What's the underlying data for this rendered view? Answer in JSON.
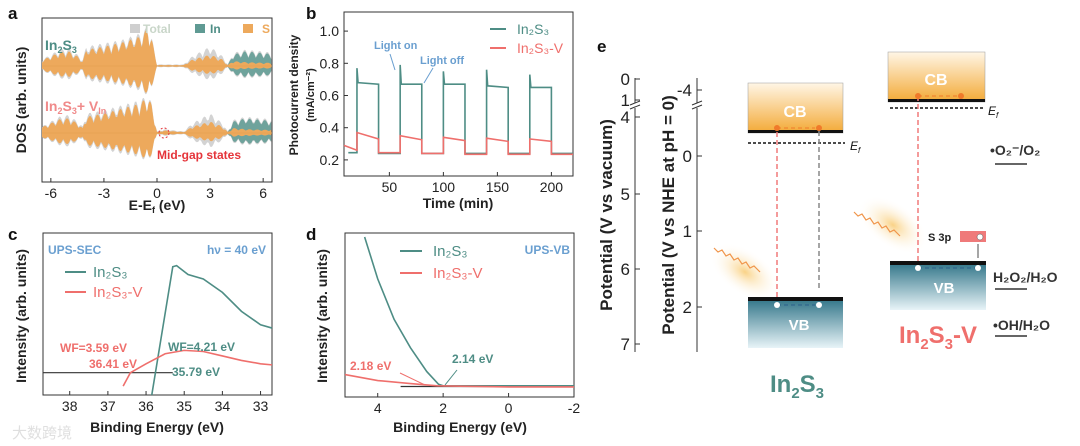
{
  "colors": {
    "teal": "#4e8d85",
    "red": "#ef6f6c",
    "orange": "#eda95c",
    "gray": "#cfcfcf",
    "blue": "#6a9fd0"
  },
  "chart_data": [
    {
      "panel": "a",
      "type": "area",
      "xlabel": "E-E",
      "xlabel_sub": "f",
      "xlabel_unit": " (eV)",
      "ylabel": "DOS (arb. units)",
      "xlim": [
        -6.5,
        6.5
      ],
      "xticks": [
        "-6",
        "-3",
        "0",
        "3",
        "6"
      ],
      "xtick_values": [
        -6,
        -3,
        0,
        3,
        6
      ],
      "legend": [
        "Total",
        "In",
        "S"
      ],
      "series": [
        {
          "name": "In₂S₃",
          "name_parts": [
            "In",
            "2",
            "S",
            "3"
          ],
          "points": [
            [
              -6.5,
              0.2,
              0.18,
              0.05
            ],
            [
              -6,
              0.35,
              0.3,
              0.08
            ],
            [
              -5.5,
              0.5,
              0.42,
              0.1
            ],
            [
              -5,
              0.55,
              0.45,
              0.1
            ],
            [
              -4.5,
              0.35,
              0.3,
              0.08
            ],
            [
              -4.2,
              0.2,
              0.15,
              0.05
            ],
            [
              -4,
              0.6,
              0.5,
              0.1
            ],
            [
              -3,
              0.7,
              0.6,
              0.15
            ],
            [
              -2,
              0.8,
              0.72,
              0.15
            ],
            [
              -1,
              1.0,
              0.9,
              0.2
            ],
            [
              -0.5,
              1.2,
              1.15,
              0.2
            ],
            [
              -0.3,
              0.9,
              0.85,
              0.1
            ],
            [
              0,
              0.05,
              0.03,
              0.01
            ],
            [
              1.5,
              0.05,
              0.03,
              0.02
            ],
            [
              2,
              0.3,
              0.2,
              0.12
            ],
            [
              3,
              0.6,
              0.35,
              0.3
            ],
            [
              3.7,
              0.3,
              0.2,
              0.15
            ],
            [
              4,
              0.05,
              0.03,
              0.03
            ],
            [
              4.3,
              0.4,
              0.15,
              0.35
            ],
            [
              5,
              0.5,
              0.12,
              0.45
            ],
            [
              6,
              0.45,
              0.1,
              0.4
            ],
            [
              6.5,
              0.4,
              0.1,
              0.36
            ]
          ]
        },
        {
          "name": "In₂S₃+ V_In",
          "name_parts": [
            "In",
            "2",
            "S",
            "3",
            "+ V",
            "In"
          ],
          "points": [
            [
              -6.5,
              0.2,
              0.18,
              0.05
            ],
            [
              -6,
              0.35,
              0.3,
              0.08
            ],
            [
              -5.5,
              0.5,
              0.42,
              0.1
            ],
            [
              -5,
              0.55,
              0.45,
              0.1
            ],
            [
              -4.5,
              0.35,
              0.3,
              0.08
            ],
            [
              -4.2,
              0.2,
              0.15,
              0.05
            ],
            [
              -4,
              0.6,
              0.5,
              0.1
            ],
            [
              -3,
              0.7,
              0.6,
              0.15
            ],
            [
              -2,
              0.85,
              0.75,
              0.15
            ],
            [
              -1,
              1.0,
              0.9,
              0.2
            ],
            [
              -0.5,
              1.15,
              1.1,
              0.2
            ],
            [
              -0.3,
              0.9,
              0.85,
              0.1
            ],
            [
              0,
              0.05,
              0.03,
              0.01
            ],
            [
              0.4,
              0.12,
              0.08,
              0.02
            ],
            [
              1.5,
              0.05,
              0.03,
              0.02
            ],
            [
              2,
              0.3,
              0.2,
              0.12
            ],
            [
              3,
              0.6,
              0.35,
              0.3
            ],
            [
              3.7,
              0.3,
              0.2,
              0.15
            ],
            [
              4,
              0.05,
              0.03,
              0.03
            ],
            [
              4.3,
              0.4,
              0.15,
              0.35
            ],
            [
              5,
              0.5,
              0.12,
              0.45
            ],
            [
              6,
              0.45,
              0.1,
              0.4
            ],
            [
              6.5,
              0.4,
              0.1,
              0.36
            ]
          ]
        }
      ],
      "annotation": "Mid-gap states"
    },
    {
      "panel": "b",
      "type": "line",
      "xlabel": "Time (min)",
      "ylabel": [
        "Photocurrent density",
        "(mA/cm⁻²)"
      ],
      "xlim": [
        8,
        220
      ],
      "ylim": [
        0.1,
        1.1
      ],
      "xticks": [
        "50",
        "100",
        "150",
        "200"
      ],
      "xtick_values": [
        50,
        100,
        150,
        200
      ],
      "yticks": [
        "0.2",
        "0.4",
        "0.6",
        "0.8",
        "1.0"
      ],
      "ytick_values": [
        0.2,
        0.4,
        0.6,
        0.8,
        1.0
      ],
      "annotations": [
        "Light on",
        "Light off"
      ],
      "series": [
        {
          "name": "In₂S₃",
          "color": "#4e8d85",
          "points": [
            [
              12,
              0.245
            ],
            [
              20,
              0.245
            ],
            [
              20,
              0.77
            ],
            [
              21,
              0.68
            ],
            [
              40,
              0.67
            ],
            [
              40,
              0.24
            ],
            [
              60,
              0.24
            ],
            [
              60,
              0.79
            ],
            [
              61,
              0.67
            ],
            [
              80,
              0.67
            ],
            [
              80,
              0.24
            ],
            [
              100,
              0.24
            ],
            [
              100,
              0.75
            ],
            [
              101,
              0.67
            ],
            [
              120,
              0.67
            ],
            [
              120,
              0.24
            ],
            [
              140,
              0.24
            ],
            [
              140,
              0.76
            ],
            [
              141,
              0.66
            ],
            [
              160,
              0.65
            ],
            [
              160,
              0.24
            ],
            [
              180,
              0.24
            ],
            [
              180,
              0.73
            ],
            [
              181,
              0.65
            ],
            [
              200,
              0.65
            ],
            [
              200,
              0.24
            ],
            [
              220,
              0.24
            ]
          ]
        },
        {
          "name": "In₂S₃-V",
          "color": "#ef6f6c",
          "points": [
            [
              8,
              0.29
            ],
            [
              20,
              0.26
            ],
            [
              20,
              0.37
            ],
            [
              40,
              0.33
            ],
            [
              40,
              0.245
            ],
            [
              60,
              0.245
            ],
            [
              60,
              0.35
            ],
            [
              80,
              0.325
            ],
            [
              80,
              0.24
            ],
            [
              100,
              0.24
            ],
            [
              100,
              0.34
            ],
            [
              120,
              0.32
            ],
            [
              120,
              0.235
            ],
            [
              140,
              0.235
            ],
            [
              140,
              0.335
            ],
            [
              160,
              0.315
            ],
            [
              160,
              0.235
            ],
            [
              180,
              0.235
            ],
            [
              180,
              0.33
            ],
            [
              200,
              0.315
            ],
            [
              200,
              0.235
            ],
            [
              220,
              0.235
            ]
          ]
        }
      ]
    },
    {
      "panel": "c",
      "type": "line",
      "xlabel": "Binding Energy (eV)",
      "ylabel": "Intensity (arb. units)",
      "xlim": [
        38.7,
        32.7
      ],
      "ylim": [
        -0.2,
        1.1
      ],
      "xticks": [
        "38",
        "37",
        "36",
        "35",
        "34",
        "33"
      ],
      "xtick_values": [
        38,
        37,
        36,
        35,
        34,
        33
      ],
      "title_left": "UPS-SEC",
      "title_right": "hν = 40 eV",
      "annotations": [
        "WF=3.59 eV",
        "36.41 eV",
        "WF=4.21 eV",
        "35.79 eV"
      ],
      "series": [
        {
          "name": "In₂S₃",
          "color": "#4e8d85",
          "points": [
            [
              35.85,
              -0.2
            ],
            [
              35.3,
              0.95
            ],
            [
              35.2,
              0.96
            ],
            [
              34.9,
              0.88
            ],
            [
              34.5,
              0.84
            ],
            [
              34,
              0.72
            ],
            [
              33.5,
              0.55
            ],
            [
              33,
              0.43
            ],
            [
              32.7,
              0.4
            ]
          ]
        },
        {
          "name": "In₂S₃-V",
          "color": "#ef6f6c",
          "points": [
            [
              36.6,
              -0.12
            ],
            [
              36.41,
              0
            ],
            [
              36,
              0.08
            ],
            [
              35.5,
              0.17
            ],
            [
              35,
              0.2
            ],
            [
              34.5,
              0.19
            ],
            [
              34,
              0.15
            ],
            [
              33.5,
              0.11
            ],
            [
              33,
              0.08
            ],
            [
              32.7,
              0.07
            ]
          ]
        }
      ]
    },
    {
      "panel": "d",
      "type": "line",
      "xlabel": "Binding Energy (eV)",
      "ylabel": "Intensity (arb. units)",
      "xlim": [
        5,
        -2
      ],
      "ylim": [
        -0.07,
        1
      ],
      "xticks": [
        "4",
        "2",
        "0",
        "-2"
      ],
      "xtick_values": [
        4,
        2,
        0,
        -2
      ],
      "title_right": "UPS-VB",
      "annotations": [
        "2.18 eV",
        "2.14 eV"
      ],
      "series": [
        {
          "name": "In₂S₃",
          "color": "#4e8d85",
          "points": [
            [
              4.4,
              1
            ],
            [
              4,
              0.72
            ],
            [
              3.5,
              0.45
            ],
            [
              3,
              0.26
            ],
            [
              2.5,
              0.1
            ],
            [
              2.14,
              0.015
            ],
            [
              2,
              0.005
            ],
            [
              -2,
              0.005
            ]
          ]
        },
        {
          "name": "In₂S₃-V",
          "color": "#ef6f6c",
          "points": [
            [
              5,
              0.08
            ],
            [
              4,
              0.04
            ],
            [
              3,
              0.02
            ],
            [
              2.18,
              0.005
            ],
            [
              0,
              -0.003
            ],
            [
              -2,
              -0.003
            ]
          ]
        }
      ]
    },
    {
      "panel": "e",
      "type": "diagram",
      "ylabel_left": "Potential (V vs vacuum)",
      "ylabel_right": "Potential (V vs NHE at pH = 0)",
      "vacuum_ticks": [
        "0",
        "1",
        "4",
        "5",
        "6",
        "7"
      ],
      "nhe_ticks": [
        "-4",
        "0",
        "1",
        "2"
      ],
      "materials": [
        {
          "name_parts": [
            "In",
            "2",
            "S",
            "3"
          ],
          "color": "#4e8d85",
          "cb_nhe": -0.32,
          "vb_nhe": 1.88,
          "ef_nhe": -0.17,
          "cb_label": "CB",
          "vb_label": "VB",
          "ef_label": "E",
          "ef_sub": "f"
        },
        {
          "name_parts": [
            "In",
            "2",
            "S",
            "3",
            "-V"
          ],
          "color": "#ef6f6c",
          "cb_nhe": -0.72,
          "vb_nhe": 1.4,
          "ef_nhe": -0.64,
          "cb_label": "CB",
          "vb_label": "VB",
          "ef_label": "E",
          "ef_sub": "f",
          "defect_label": "S 3p"
        }
      ],
      "redox": [
        "•O₂⁻/O₂",
        "H₂O₂/H₂O",
        "•OH/H₂O"
      ]
    }
  ],
  "panel_labels": [
    "a",
    "b",
    "c",
    "d",
    "e"
  ],
  "watermark": "大数跨境"
}
